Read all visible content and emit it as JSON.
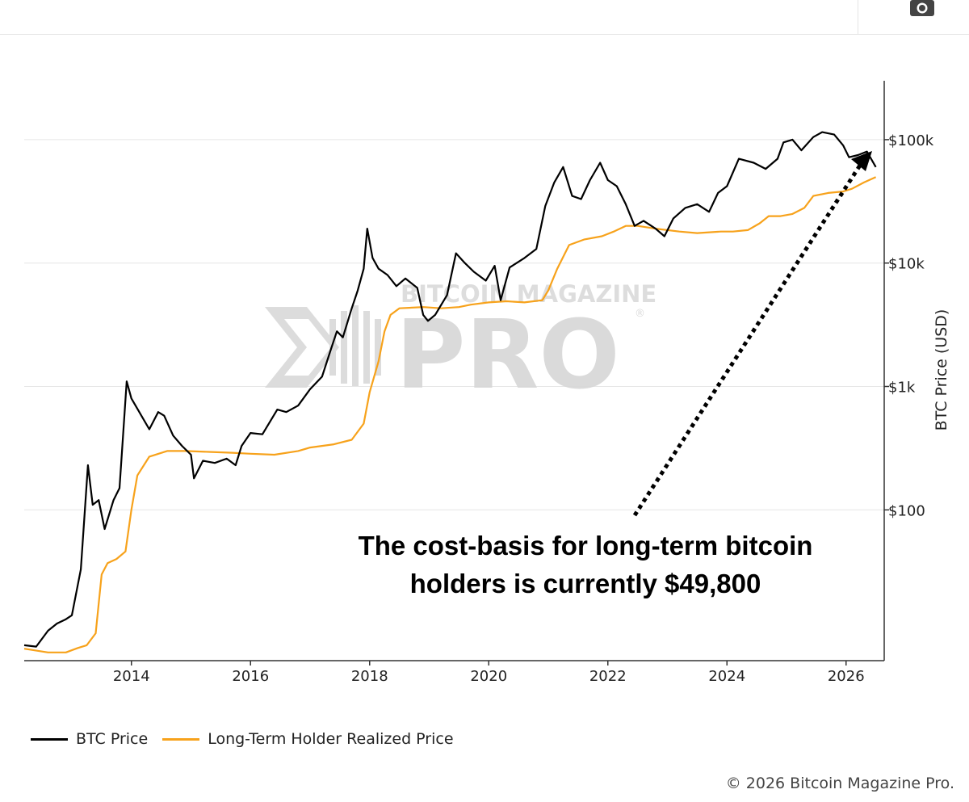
{
  "toolbar": {
    "camera_icon": "camera-icon"
  },
  "colors": {
    "btc": "#000000",
    "lth": "#f7a21b",
    "grid": "#e6e6e6",
    "watermark": "#d9d9d9"
  },
  "watermark": {
    "line1": "BITCOIN MAGAZINE",
    "line2": "PRO",
    "registered": "®"
  },
  "annotation": {
    "line1": "The cost-basis for long-term bitcoin",
    "line2": "holders is currently $49,800"
  },
  "legend": [
    {
      "label": "BTC Price",
      "color": "#000000"
    },
    {
      "label": "Long-Term Holder Realized Price",
      "color": "#f7a21b"
    }
  ],
  "footer": {
    "copyright": "© 2026 Bitcoin Magazine Pro."
  },
  "chart_data": {
    "type": "line",
    "title": "",
    "xlabel": "",
    "ylabel": "BTC Price (USD)",
    "y_scale": "log",
    "y_axis_position": "right",
    "xlim": [
      2012.2,
      2026.6
    ],
    "ylim": [
      6,
      300000
    ],
    "x_ticks": [
      {
        "value": 2014,
        "label": "2014"
      },
      {
        "value": 2016,
        "label": "2016"
      },
      {
        "value": 2018,
        "label": "2018"
      },
      {
        "value": 2020,
        "label": "2020"
      },
      {
        "value": 2022,
        "label": "2022"
      },
      {
        "value": 2024,
        "label": "2024"
      },
      {
        "value": 2026,
        "label": "2026"
      }
    ],
    "y_ticks": [
      {
        "value": 100,
        "label": "$100"
      },
      {
        "value": 1000,
        "label": "$1k"
      },
      {
        "value": 10000,
        "label": "$10k"
      },
      {
        "value": 100000,
        "label": "$100k"
      }
    ],
    "grid": true,
    "legend_position": "bottom-left",
    "series": [
      {
        "name": "BTC Price",
        "color": "#000000",
        "points": [
          [
            2012.2,
            8
          ],
          [
            2012.4,
            7.8
          ],
          [
            2012.6,
            10.5
          ],
          [
            2012.75,
            12
          ],
          [
            2012.9,
            13
          ],
          [
            2013.0,
            14
          ],
          [
            2013.15,
            33
          ],
          [
            2013.27,
            230
          ],
          [
            2013.35,
            110
          ],
          [
            2013.45,
            120
          ],
          [
            2013.55,
            70
          ],
          [
            2013.7,
            120
          ],
          [
            2013.8,
            150
          ],
          [
            2013.92,
            1100
          ],
          [
            2014.0,
            800
          ],
          [
            2014.15,
            600
          ],
          [
            2014.3,
            450
          ],
          [
            2014.45,
            620
          ],
          [
            2014.55,
            580
          ],
          [
            2014.7,
            400
          ],
          [
            2014.85,
            330
          ],
          [
            2015.0,
            280
          ],
          [
            2015.05,
            180
          ],
          [
            2015.2,
            250
          ],
          [
            2015.4,
            240
          ],
          [
            2015.6,
            260
          ],
          [
            2015.75,
            230
          ],
          [
            2015.85,
            330
          ],
          [
            2016.0,
            420
          ],
          [
            2016.2,
            410
          ],
          [
            2016.45,
            650
          ],
          [
            2016.6,
            620
          ],
          [
            2016.8,
            700
          ],
          [
            2017.0,
            950
          ],
          [
            2017.2,
            1200
          ],
          [
            2017.35,
            2000
          ],
          [
            2017.45,
            2800
          ],
          [
            2017.55,
            2500
          ],
          [
            2017.7,
            4300
          ],
          [
            2017.8,
            6000
          ],
          [
            2017.9,
            9000
          ],
          [
            2017.96,
            19000
          ],
          [
            2018.05,
            11000
          ],
          [
            2018.15,
            9000
          ],
          [
            2018.3,
            8000
          ],
          [
            2018.45,
            6500
          ],
          [
            2018.6,
            7500
          ],
          [
            2018.8,
            6300
          ],
          [
            2018.9,
            3800
          ],
          [
            2018.98,
            3400
          ],
          [
            2019.1,
            3800
          ],
          [
            2019.3,
            5500
          ],
          [
            2019.45,
            12000
          ],
          [
            2019.6,
            10000
          ],
          [
            2019.75,
            8500
          ],
          [
            2019.95,
            7200
          ],
          [
            2020.1,
            9500
          ],
          [
            2020.2,
            5000
          ],
          [
            2020.35,
            9200
          ],
          [
            2020.6,
            11000
          ],
          [
            2020.8,
            13000
          ],
          [
            2020.95,
            29000
          ],
          [
            2021.1,
            45000
          ],
          [
            2021.25,
            60000
          ],
          [
            2021.4,
            35000
          ],
          [
            2021.55,
            33000
          ],
          [
            2021.7,
            47000
          ],
          [
            2021.87,
            65000
          ],
          [
            2022.0,
            47000
          ],
          [
            2022.15,
            42000
          ],
          [
            2022.3,
            30000
          ],
          [
            2022.45,
            20000
          ],
          [
            2022.6,
            22000
          ],
          [
            2022.8,
            19000
          ],
          [
            2022.95,
            16500
          ],
          [
            2023.1,
            23000
          ],
          [
            2023.3,
            28000
          ],
          [
            2023.5,
            30000
          ],
          [
            2023.7,
            26000
          ],
          [
            2023.85,
            37000
          ],
          [
            2024.0,
            42000
          ],
          [
            2024.2,
            70000
          ],
          [
            2024.45,
            65000
          ],
          [
            2024.65,
            58000
          ],
          [
            2024.85,
            70000
          ],
          [
            2024.95,
            95000
          ],
          [
            2025.1,
            100000
          ],
          [
            2025.25,
            82000
          ],
          [
            2025.45,
            105000
          ],
          [
            2025.6,
            115000
          ],
          [
            2025.8,
            110000
          ],
          [
            2025.95,
            90000
          ],
          [
            2026.05,
            72000
          ],
          [
            2026.2,
            75000
          ],
          [
            2026.35,
            80000
          ],
          [
            2026.5,
            60000
          ]
        ]
      },
      {
        "name": "Long-Term Holder Realized Price",
        "color": "#f7a21b",
        "points": [
          [
            2012.2,
            7.5
          ],
          [
            2012.6,
            7
          ],
          [
            2012.9,
            7
          ],
          [
            2013.1,
            7.6
          ],
          [
            2013.25,
            8
          ],
          [
            2013.4,
            10
          ],
          [
            2013.5,
            30
          ],
          [
            2013.6,
            37
          ],
          [
            2013.75,
            40
          ],
          [
            2013.9,
            46
          ],
          [
            2014.0,
            100
          ],
          [
            2014.1,
            190
          ],
          [
            2014.3,
            270
          ],
          [
            2014.6,
            300
          ],
          [
            2014.9,
            300
          ],
          [
            2015.3,
            295
          ],
          [
            2015.7,
            290
          ],
          [
            2016.0,
            285
          ],
          [
            2016.4,
            280
          ],
          [
            2016.8,
            300
          ],
          [
            2017.0,
            320
          ],
          [
            2017.4,
            340
          ],
          [
            2017.7,
            370
          ],
          [
            2017.9,
            500
          ],
          [
            2018.0,
            900
          ],
          [
            2018.15,
            1600
          ],
          [
            2018.25,
            2800
          ],
          [
            2018.35,
            3800
          ],
          [
            2018.5,
            4300
          ],
          [
            2018.9,
            4400
          ],
          [
            2019.2,
            4300
          ],
          [
            2019.5,
            4400
          ],
          [
            2019.7,
            4600
          ],
          [
            2020.0,
            4800
          ],
          [
            2020.3,
            4900
          ],
          [
            2020.6,
            4800
          ],
          [
            2020.9,
            5000
          ],
          [
            2021.0,
            6000
          ],
          [
            2021.15,
            9000
          ],
          [
            2021.35,
            14000
          ],
          [
            2021.6,
            15500
          ],
          [
            2021.9,
            16500
          ],
          [
            2022.1,
            18000
          ],
          [
            2022.3,
            20000
          ],
          [
            2022.5,
            20000
          ],
          [
            2022.8,
            19000
          ],
          [
            2023.2,
            18000
          ],
          [
            2023.5,
            17500
          ],
          [
            2023.9,
            18000
          ],
          [
            2024.1,
            18000
          ],
          [
            2024.35,
            18500
          ],
          [
            2024.55,
            21000
          ],
          [
            2024.7,
            24000
          ],
          [
            2024.9,
            24000
          ],
          [
            2025.1,
            25000
          ],
          [
            2025.3,
            28000
          ],
          [
            2025.45,
            35000
          ],
          [
            2025.7,
            37000
          ],
          [
            2025.95,
            38000
          ],
          [
            2026.1,
            40000
          ],
          [
            2026.3,
            45000
          ],
          [
            2026.5,
            49800
          ]
        ]
      }
    ]
  }
}
